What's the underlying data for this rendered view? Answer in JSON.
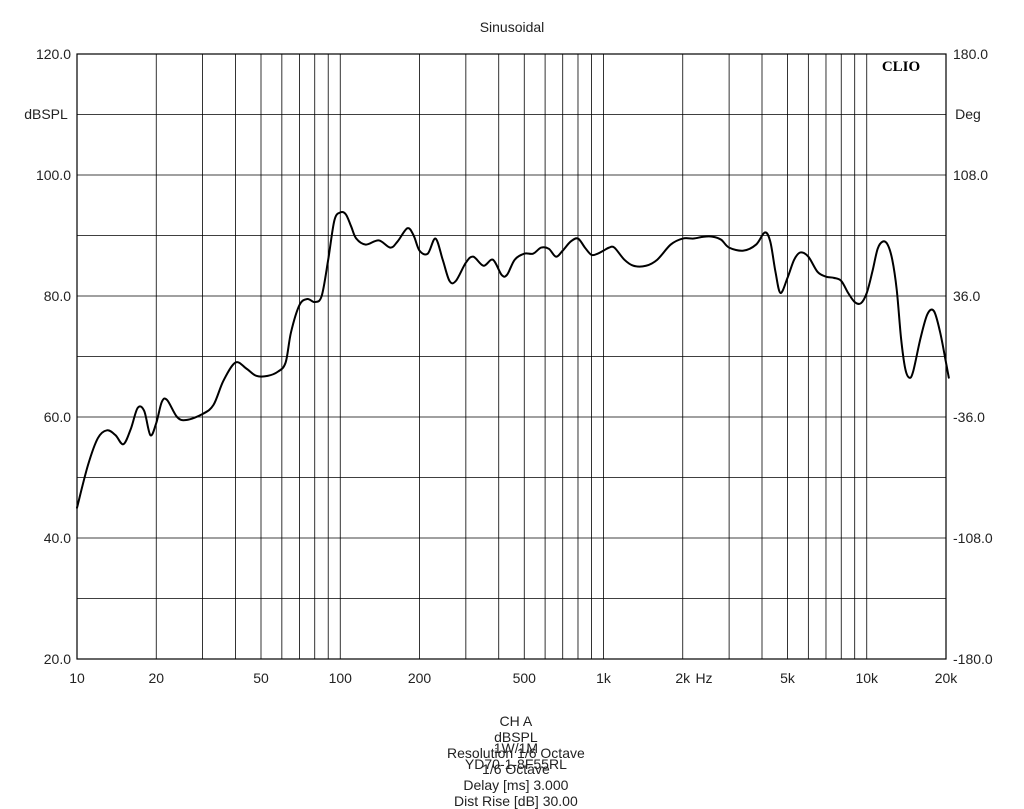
{
  "chart_data": {
    "type": "line",
    "title": "Sinusoidal",
    "brand": "CLIO",
    "x_scale": "log",
    "xlim": [
      10,
      20000
    ],
    "x_unit_label": "Hz",
    "x_ticks": [
      {
        "v": 10,
        "label": "10"
      },
      {
        "v": 20,
        "label": "20"
      },
      {
        "v": 50,
        "label": "50"
      },
      {
        "v": 100,
        "label": "100"
      },
      {
        "v": 200,
        "label": "200"
      },
      {
        "v": 500,
        "label": "500"
      },
      {
        "v": 1000,
        "label": "1k"
      },
      {
        "v": 2000,
        "label": "2k"
      },
      {
        "v": 5000,
        "label": "5k"
      },
      {
        "v": 10000,
        "label": "10k"
      },
      {
        "v": 20000,
        "label": "20k"
      }
    ],
    "ylabel_left": "dBSPL",
    "ylim_left": [
      20,
      120
    ],
    "y_ticks_left": [
      {
        "v": 20,
        "label": "20.0"
      },
      {
        "v": 40,
        "label": "40.0"
      },
      {
        "v": 60,
        "label": "60.0"
      },
      {
        "v": 80,
        "label": "80.0"
      },
      {
        "v": 100,
        "label": "100.0"
      },
      {
        "v": 120,
        "label": "120.0"
      }
    ],
    "ylabel_right": "Deg",
    "ylim_right": [
      -180,
      180
    ],
    "y_ticks_right": [
      {
        "v": -180,
        "label": "-180.0"
      },
      {
        "v": -108,
        "label": "-108.0"
      },
      {
        "v": -36,
        "label": "-36.0"
      },
      {
        "v": 36,
        "label": "36.0"
      },
      {
        "v": 108,
        "label": "108.0"
      },
      {
        "v": 180,
        "label": "180.0"
      }
    ],
    "grid": true,
    "series": [
      {
        "points": [
          [
            10,
            45
          ],
          [
            11,
            52
          ],
          [
            12,
            56.5
          ],
          [
            13,
            57.8
          ],
          [
            14,
            57
          ],
          [
            15,
            55.5
          ],
          [
            16,
            58
          ],
          [
            17,
            61.5
          ],
          [
            18,
            61
          ],
          [
            19,
            57
          ],
          [
            20,
            59
          ],
          [
            21,
            62.5
          ],
          [
            22,
            62.8
          ],
          [
            24,
            60
          ],
          [
            26,
            59.5
          ],
          [
            30,
            60.5
          ],
          [
            33,
            62
          ],
          [
            36,
            66
          ],
          [
            40,
            69
          ],
          [
            44,
            68
          ],
          [
            48,
            66.8
          ],
          [
            53,
            66.8
          ],
          [
            58,
            67.5
          ],
          [
            62,
            69
          ],
          [
            65,
            74
          ],
          [
            70,
            78.5
          ],
          [
            75,
            79.5
          ],
          [
            80,
            79
          ],
          [
            85,
            80
          ],
          [
            90,
            86
          ],
          [
            95,
            92.5
          ],
          [
            100,
            93.8
          ],
          [
            105,
            93.5
          ],
          [
            110,
            91.5
          ],
          [
            115,
            89.5
          ],
          [
            125,
            88.5
          ],
          [
            140,
            89.2
          ],
          [
            155,
            88
          ],
          [
            165,
            89
          ],
          [
            180,
            91.2
          ],
          [
            190,
            90
          ],
          [
            200,
            87.5
          ],
          [
            215,
            87
          ],
          [
            230,
            89.5
          ],
          [
            245,
            86
          ],
          [
            260,
            82.5
          ],
          [
            275,
            82.5
          ],
          [
            300,
            85.5
          ],
          [
            320,
            86.5
          ],
          [
            350,
            85
          ],
          [
            380,
            86
          ],
          [
            410,
            83.5
          ],
          [
            430,
            83.5
          ],
          [
            460,
            86
          ],
          [
            500,
            87
          ],
          [
            540,
            87
          ],
          [
            580,
            88
          ],
          [
            620,
            87.8
          ],
          [
            660,
            86.5
          ],
          [
            700,
            87.5
          ],
          [
            750,
            89
          ],
          [
            800,
            89.5
          ],
          [
            850,
            88
          ],
          [
            900,
            86.8
          ],
          [
            950,
            87
          ],
          [
            1000,
            87.5
          ],
          [
            1050,
            88
          ],
          [
            1100,
            88
          ],
          [
            1200,
            86
          ],
          [
            1300,
            85
          ],
          [
            1450,
            85
          ],
          [
            1600,
            86
          ],
          [
            1800,
            88.5
          ],
          [
            2000,
            89.5
          ],
          [
            2200,
            89.5
          ],
          [
            2400,
            89.8
          ],
          [
            2600,
            89.8
          ],
          [
            2800,
            89.3
          ],
          [
            3000,
            88
          ],
          [
            3400,
            87.5
          ],
          [
            3800,
            88.5
          ],
          [
            4100,
            90.5
          ],
          [
            4300,
            89
          ],
          [
            4500,
            84
          ],
          [
            4700,
            80.5
          ],
          [
            5000,
            83
          ],
          [
            5300,
            86
          ],
          [
            5600,
            87.2
          ],
          [
            6000,
            86.5
          ],
          [
            6500,
            84
          ],
          [
            7000,
            83.2
          ],
          [
            7500,
            83
          ],
          [
            8000,
            82.5
          ],
          [
            8500,
            80.5
          ],
          [
            9000,
            79
          ],
          [
            9500,
            78.8
          ],
          [
            10000,
            80.5
          ],
          [
            10500,
            84
          ],
          [
            11000,
            87.8
          ],
          [
            11500,
            89
          ],
          [
            12000,
            88.5
          ],
          [
            12500,
            86
          ],
          [
            13000,
            81
          ],
          [
            13500,
            73
          ],
          [
            14000,
            68
          ],
          [
            14500,
            66.5
          ],
          [
            15000,
            67.5
          ],
          [
            16000,
            73
          ],
          [
            17000,
            77
          ],
          [
            18000,
            77.5
          ],
          [
            19000,
            74
          ],
          [
            20000,
            69
          ],
          [
            20500,
            66.5
          ]
        ]
      }
    ]
  },
  "footer": {
    "line1": [
      "CH A",
      "dBSPL",
      "Resolution 1/6 Octave",
      "1/6 Octave",
      "Delay [ms] 3.000",
      "Dist Rise [dB] 30.00"
    ],
    "line2": [
      "1W/1M",
      "YD70-1-8F55RL"
    ]
  }
}
